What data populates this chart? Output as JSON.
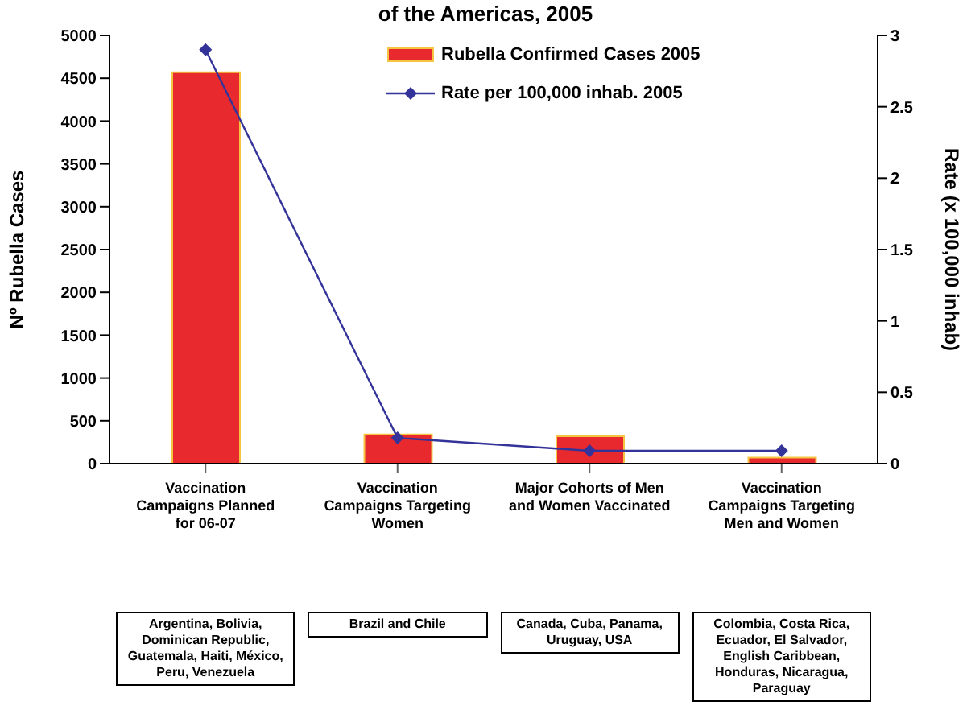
{
  "chart_data": {
    "type": "bar",
    "title": "of the Americas, 2005",
    "ylabel": "Nº Rubella Cases",
    "y2label": "Rate (x 100,000 inhab)",
    "categories": [
      "Vaccination Campaigns Planned for 06-07",
      "Vaccination Campaigns Targeting Women",
      "Major Cohorts of Men and Women Vaccinated",
      "Vaccination Campaigns Targeting Men and Women"
    ],
    "series": [
      {
        "name": "Rubella Confirmed Cases 2005",
        "color": "#e8292d",
        "values": [
          4570,
          340,
          320,
          70
        ]
      },
      {
        "name": "Rate per 100,000 inhab. 2005",
        "type": "line",
        "axis": "y2",
        "color": "#333399",
        "marker": "diamond",
        "values": [
          2.9,
          0.18,
          0.09,
          0.09
        ]
      }
    ],
    "ylim": [
      0,
      5000
    ],
    "yticks": [
      0,
      500,
      1000,
      1500,
      2000,
      2500,
      3000,
      3500,
      4000,
      4500,
      5000
    ],
    "y2lim": [
      0,
      3
    ],
    "y2ticks": [
      0,
      0.5,
      1,
      1.5,
      2,
      2.5,
      3
    ],
    "legend": "top right",
    "grid": false,
    "annotations": [
      "Argentina, Bolivia, Dominican Republic, Guatemala, Haiti, México, Peru, Venezuela",
      "Brazil and Chile",
      "Canada, Cuba, Panama, Uruguay, USA",
      "Colombia, Costa Rica, Ecuador, El Salvador, English Caribbean, Honduras, Nicaragua, Paraguay"
    ]
  }
}
